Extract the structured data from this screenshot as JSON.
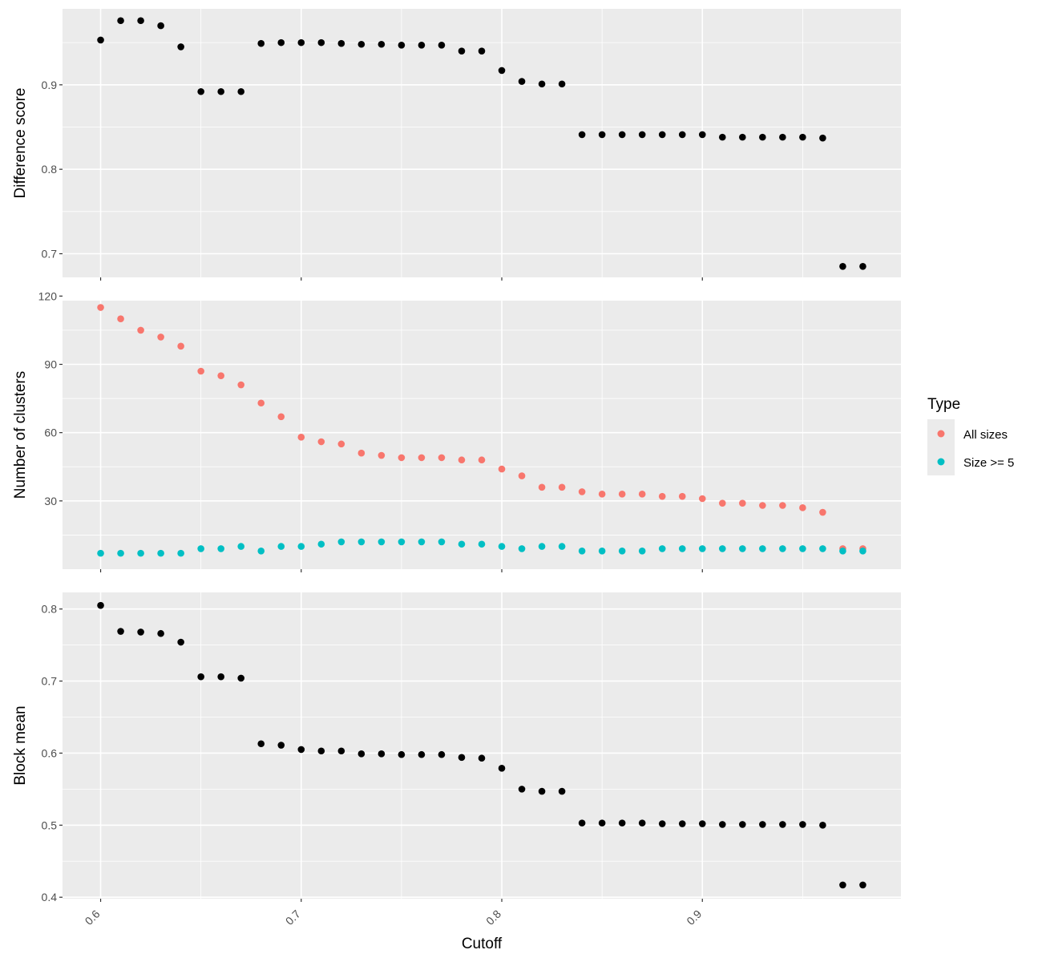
{
  "chart_data": {
    "type": "scatter",
    "xlabel": "Cutoff",
    "x_ticks": [
      "0.6",
      "0.7",
      "0.8",
      "0.9"
    ],
    "xlim": [
      0.581,
      0.999
    ],
    "x": [
      0.6,
      0.61,
      0.62,
      0.63,
      0.64,
      0.65,
      0.66,
      0.67,
      0.68,
      0.69,
      0.7,
      0.71,
      0.72,
      0.73,
      0.74,
      0.75,
      0.76,
      0.77,
      0.78,
      0.79,
      0.8,
      0.81,
      0.82,
      0.83,
      0.84,
      0.85,
      0.86,
      0.87,
      0.88,
      0.89,
      0.9,
      0.91,
      0.92,
      0.93,
      0.94,
      0.95,
      0.96,
      0.97,
      0.98
    ],
    "grid": true,
    "background": "#ebebeb",
    "panels": [
      {
        "ylabel": "Difference score",
        "ylim": [
          0.672,
          0.99
        ],
        "y_ticks": [
          "0.7",
          "0.8",
          "0.9"
        ],
        "series": [
          {
            "color": "#000000",
            "values": [
              0.953,
              0.976,
              0.976,
              0.97,
              0.945,
              0.892,
              0.892,
              0.892,
              0.949,
              0.95,
              0.95,
              0.95,
              0.949,
              0.948,
              0.948,
              0.947,
              0.947,
              0.947,
              0.94,
              0.94,
              0.917,
              0.904,
              0.901,
              0.901,
              0.841,
              0.841,
              0.841,
              0.841,
              0.841,
              0.841,
              0.841,
              0.838,
              0.838,
              0.838,
              0.838,
              0.838,
              0.837,
              0.685,
              0.685
            ]
          }
        ]
      },
      {
        "ylabel": "Number of clusters",
        "ylim": [
          0,
          118
        ],
        "y_ticks": [
          "30",
          "60",
          "90",
          "120"
        ],
        "series": [
          {
            "name": "All sizes",
            "color": "#f8766d",
            "values": [
              115,
              110,
              105,
              102,
              98,
              87,
              85,
              81,
              73,
              67,
              58,
              56,
              55,
              51,
              50,
              49,
              49,
              49,
              48,
              48,
              44,
              41,
              36,
              36,
              34,
              33,
              33,
              33,
              32,
              32,
              31,
              29,
              29,
              28,
              28,
              27,
              25,
              9,
              9
            ]
          },
          {
            "name": "Size >= 5",
            "color": "#00bfc4",
            "values": [
              7,
              7,
              7,
              7,
              7,
              9,
              9,
              10,
              8,
              10,
              10,
              11,
              12,
              12,
              12,
              12,
              12,
              12,
              11,
              11,
              10,
              9,
              10,
              10,
              8,
              8,
              8,
              8,
              9,
              9,
              9,
              9,
              9,
              9,
              9,
              9,
              9,
              8,
              8
            ]
          }
        ]
      },
      {
        "ylabel": "Block mean",
        "ylim": [
          0.398,
          0.823
        ],
        "y_ticks": [
          "0.4",
          "0.5",
          "0.6",
          "0.7",
          "0.8"
        ],
        "series": [
          {
            "color": "#000000",
            "values": [
              0.805,
              0.769,
              0.768,
              0.766,
              0.754,
              0.706,
              0.706,
              0.704,
              0.613,
              0.611,
              0.605,
              0.603,
              0.603,
              0.599,
              0.599,
              0.598,
              0.598,
              0.598,
              0.594,
              0.593,
              0.579,
              0.55,
              0.547,
              0.547,
              0.503,
              0.503,
              0.503,
              0.503,
              0.502,
              0.502,
              0.502,
              0.501,
              0.501,
              0.501,
              0.501,
              0.501,
              0.5,
              0.417,
              0.417
            ]
          }
        ]
      }
    ],
    "legend": {
      "title": "Type",
      "position": "right",
      "items": [
        {
          "label": "All sizes",
          "color": "#f8766d"
        },
        {
          "label": "Size >= 5",
          "color": "#00bfc4"
        }
      ]
    }
  }
}
